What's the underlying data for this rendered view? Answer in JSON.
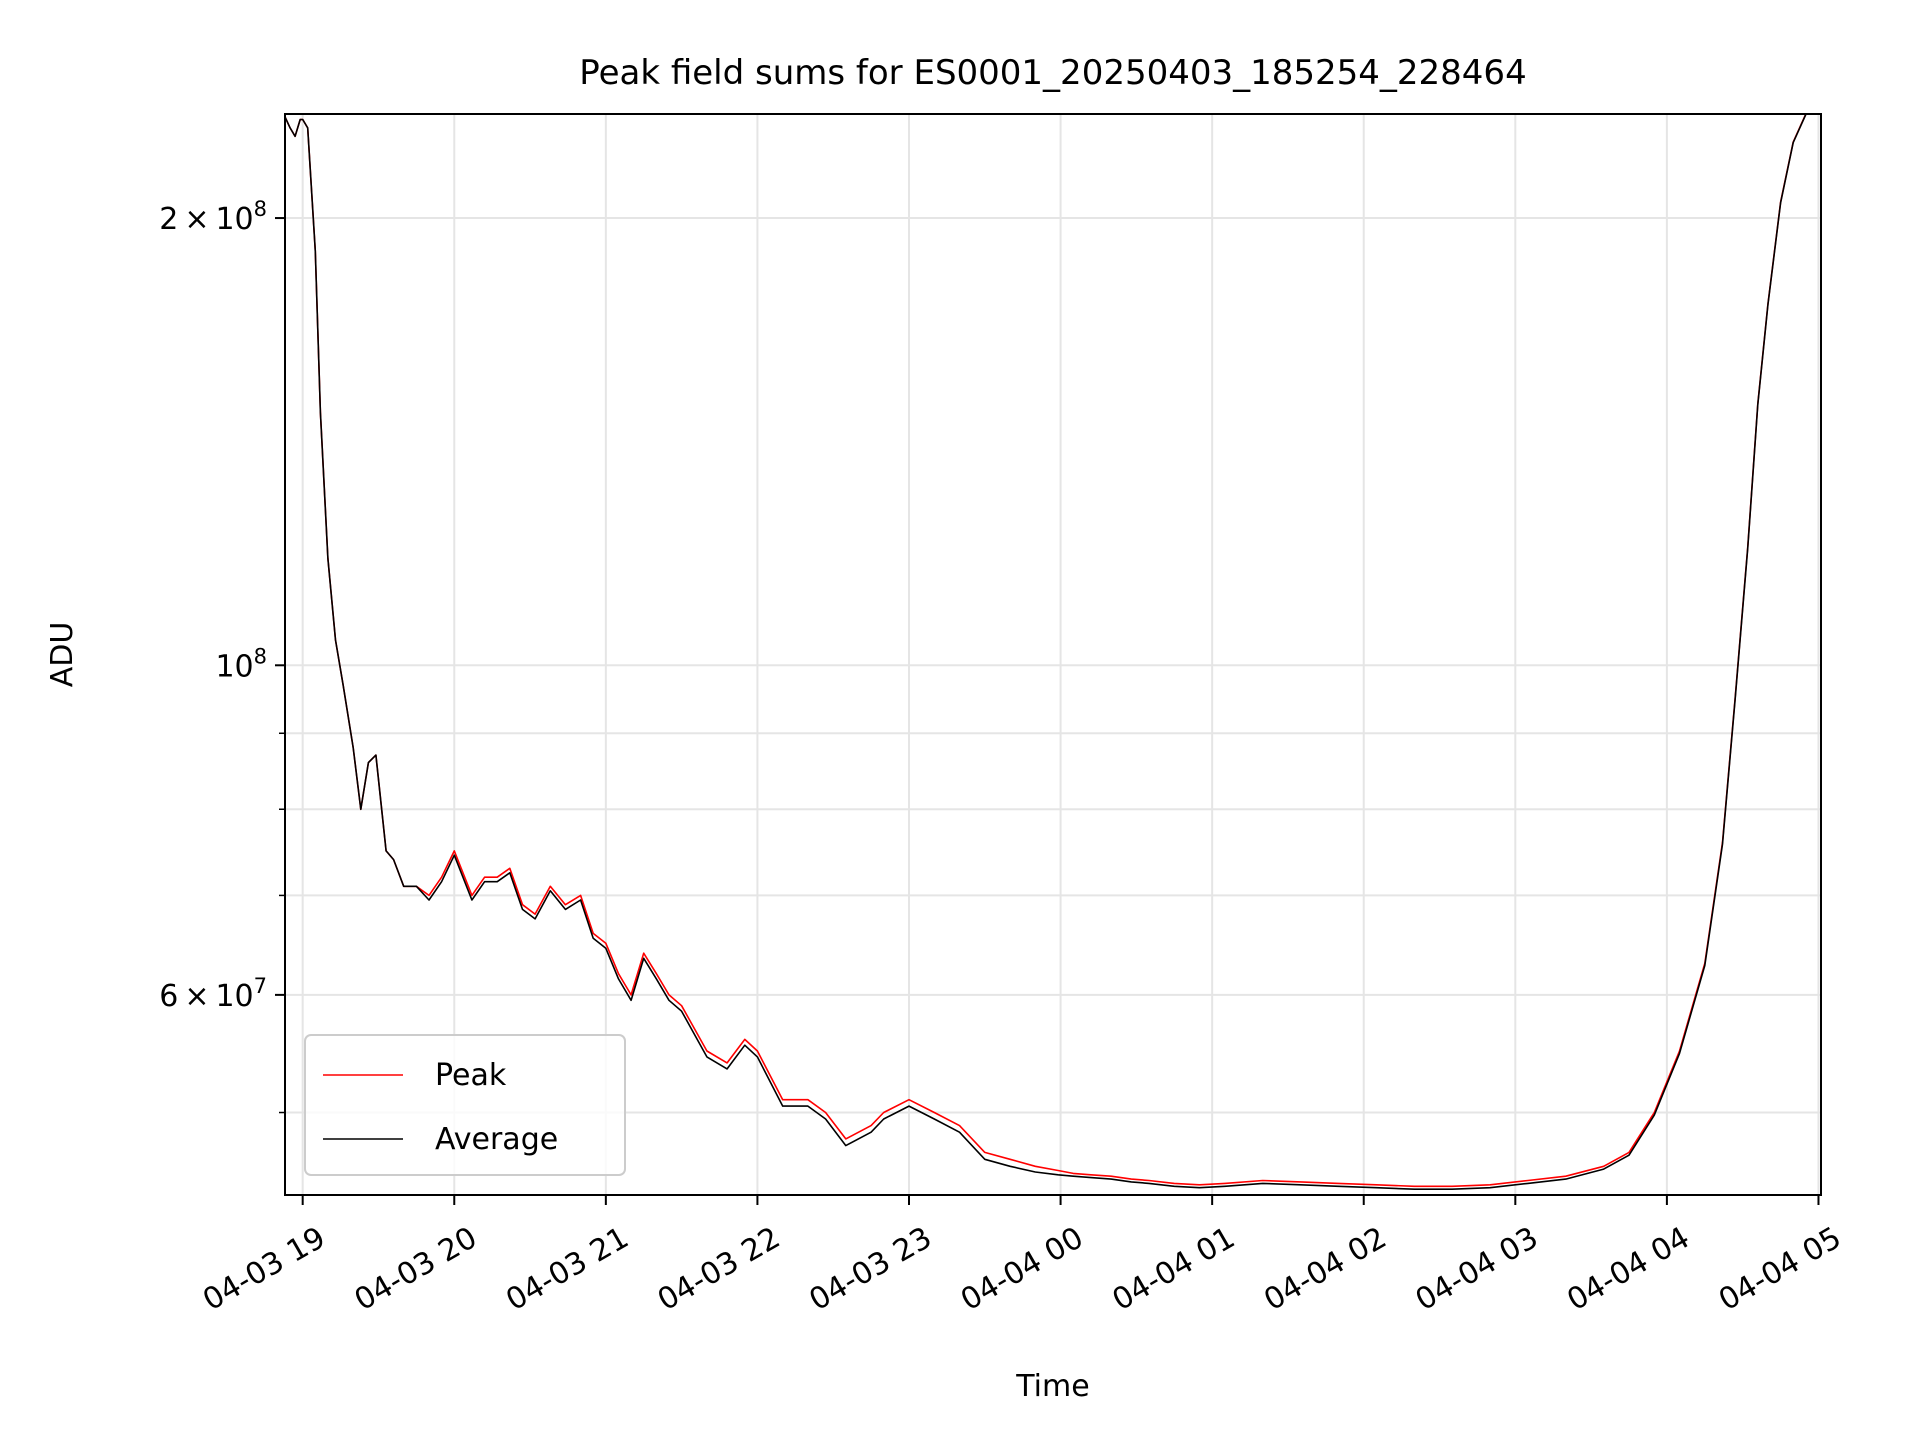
{
  "chart_data": {
    "type": "line",
    "title": "Peak field sums for ES0001_20250403_185254_228464",
    "xlabel": "Time",
    "ylabel": "ADU",
    "yscale": "log",
    "xlim": [
      "04-03 18:53",
      "04-04 05:01"
    ],
    "ylim": [
      44000000.0,
      235000000.0
    ],
    "grid": true,
    "legend_position": "lower-left",
    "x_ticks": [
      "04-03 19",
      "04-03 20",
      "04-03 21",
      "04-03 22",
      "04-03 23",
      "04-04 00",
      "04-04 01",
      "04-04 02",
      "04-04 03",
      "04-04 04",
      "04-04 05"
    ],
    "y_tick_labels": [
      {
        "value": 200000000,
        "mantissa": "2",
        "exponent": "8"
      },
      {
        "value": 100000000,
        "mantissa": "",
        "exponent": "8"
      },
      {
        "value": 60000000,
        "mantissa": "6",
        "exponent": "7"
      }
    ],
    "y_minor_ticks": [
      50000000,
      70000000,
      80000000,
      90000000
    ],
    "series": [
      {
        "name": "Peak",
        "color": "#ff0000",
        "x": [
          "04-03 18:53",
          "04-03 18:55",
          "04-03 18:57",
          "04-03 18:59",
          "04-03 19:00",
          "04-03 19:02",
          "04-03 19:05",
          "04-03 19:07",
          "04-03 19:10",
          "04-03 19:13",
          "04-03 19:16",
          "04-03 19:20",
          "04-03 19:23",
          "04-03 19:26",
          "04-03 19:29",
          "04-03 19:33",
          "04-03 19:36",
          "04-03 19:40",
          "04-03 19:45",
          "04-03 19:50",
          "04-03 19:55",
          "04-03 20:00",
          "04-03 20:07",
          "04-03 20:12",
          "04-03 20:17",
          "04-03 20:22",
          "04-03 20:27",
          "04-03 20:32",
          "04-03 20:38",
          "04-03 20:44",
          "04-03 20:50",
          "04-03 20:55",
          "04-03 21:00",
          "04-03 21:05",
          "04-03 21:10",
          "04-03 21:15",
          "04-03 21:20",
          "04-03 21:25",
          "04-03 21:30",
          "04-03 21:40",
          "04-03 21:48",
          "04-03 21:55",
          "04-03 22:00",
          "04-03 22:10",
          "04-03 22:20",
          "04-03 22:27",
          "04-03 22:35",
          "04-03 22:45",
          "04-03 22:50",
          "04-03 23:00",
          "04-03 23:10",
          "04-03 23:20",
          "04-03 23:30",
          "04-03 23:40",
          "04-03 23:50",
          "04-03 23:59",
          "04-04 00:05",
          "04-04 00:12",
          "04-04 00:20",
          "04-04 00:28",
          "04-04 00:35",
          "04-04 00:45",
          "04-04 00:55",
          "04-04 01:05",
          "04-04 01:20",
          "04-04 01:35",
          "04-04 01:50",
          "04-04 02:05",
          "04-04 02:20",
          "04-04 02:35",
          "04-04 02:50",
          "04-04 03:05",
          "04-04 03:20",
          "04-04 03:35",
          "04-04 03:45",
          "04-04 03:55",
          "04-04 04:05",
          "04-04 04:15",
          "04-04 04:22",
          "04-04 04:27",
          "04-04 04:32",
          "04-04 04:36",
          "04-04 04:40",
          "04-04 04:45",
          "04-04 04:50",
          "04-04 04:55",
          "04-04 05:00",
          "04-04 05:01"
        ],
        "values": [
          234000000,
          230000000,
          227000000,
          233000000,
          233000000,
          230000000,
          190000000,
          148000000,
          118000000,
          104000000,
          97000000,
          88000000,
          80000000,
          86000000,
          87000000,
          75000000,
          74000000,
          71000000,
          71000000,
          70000000,
          72000000,
          75000000,
          70000000,
          72000000,
          72000000,
          73000000,
          69000000,
          68000000,
          71000000,
          69000000,
          70000000,
          66000000,
          65000000,
          62000000,
          60000000,
          64000000,
          62000000,
          60000000,
          59000000,
          55000000,
          54000000,
          56000000,
          55000000,
          51000000,
          51000000,
          50000000,
          48000000,
          49000000,
          50000000,
          51000000,
          50000000,
          49000000,
          47000000,
          46500000,
          46000000,
          45700000,
          45500000,
          45400000,
          45300000,
          45100000,
          45000000,
          44800000,
          44700000,
          44800000,
          45000000,
          44900000,
          44800000,
          44700000,
          44600000,
          44600000,
          44700000,
          45000000,
          45300000,
          46000000,
          47000000,
          50000000,
          55000000,
          63000000,
          76000000,
          95000000,
          120000000,
          150000000,
          175000000,
          205000000,
          225000000,
          235000000,
          238000000,
          240000000
        ]
      },
      {
        "name": "Average",
        "color": "#000000",
        "x": [
          "04-03 18:53",
          "04-03 18:55",
          "04-03 18:57",
          "04-03 18:59",
          "04-03 19:00",
          "04-03 19:02",
          "04-03 19:05",
          "04-03 19:07",
          "04-03 19:10",
          "04-03 19:13",
          "04-03 19:16",
          "04-03 19:20",
          "04-03 19:23",
          "04-03 19:26",
          "04-03 19:29",
          "04-03 19:33",
          "04-03 19:36",
          "04-03 19:40",
          "04-03 19:45",
          "04-03 19:50",
          "04-03 19:55",
          "04-03 20:00",
          "04-03 20:07",
          "04-03 20:12",
          "04-03 20:17",
          "04-03 20:22",
          "04-03 20:27",
          "04-03 20:32",
          "04-03 20:38",
          "04-03 20:44",
          "04-03 20:50",
          "04-03 20:55",
          "04-03 21:00",
          "04-03 21:05",
          "04-03 21:10",
          "04-03 21:15",
          "04-03 21:20",
          "04-03 21:25",
          "04-03 21:30",
          "04-03 21:40",
          "04-03 21:48",
          "04-03 21:55",
          "04-03 22:00",
          "04-03 22:10",
          "04-03 22:20",
          "04-03 22:27",
          "04-03 22:35",
          "04-03 22:45",
          "04-03 22:50",
          "04-03 23:00",
          "04-03 23:10",
          "04-03 23:20",
          "04-03 23:30",
          "04-03 23:40",
          "04-03 23:50",
          "04-03 23:59",
          "04-04 00:05",
          "04-04 00:12",
          "04-04 00:20",
          "04-04 00:28",
          "04-04 00:35",
          "04-04 00:45",
          "04-04 00:55",
          "04-04 01:05",
          "04-04 01:20",
          "04-04 01:35",
          "04-04 01:50",
          "04-04 02:05",
          "04-04 02:20",
          "04-04 02:35",
          "04-04 02:50",
          "04-04 03:05",
          "04-04 03:20",
          "04-04 03:35",
          "04-04 03:45",
          "04-04 03:55",
          "04-04 04:05",
          "04-04 04:15",
          "04-04 04:22",
          "04-04 04:27",
          "04-04 04:32",
          "04-04 04:36",
          "04-04 04:40",
          "04-04 04:45",
          "04-04 04:50",
          "04-04 04:55",
          "04-04 05:00",
          "04-04 05:01"
        ],
        "values": [
          234000000,
          230000000,
          227000000,
          233000000,
          233000000,
          230000000,
          190000000,
          148000000,
          118000000,
          104000000,
          97000000,
          88000000,
          80000000,
          86000000,
          87000000,
          75000000,
          74000000,
          71000000,
          71000000,
          69500000,
          71500000,
          74500000,
          69500000,
          71500000,
          71500000,
          72500000,
          68500000,
          67500000,
          70500000,
          68500000,
          69500000,
          65500000,
          64500000,
          61500000,
          59500000,
          63500000,
          61500000,
          59500000,
          58500000,
          54500000,
          53500000,
          55500000,
          54500000,
          50500000,
          50500000,
          49500000,
          47500000,
          48500000,
          49500000,
          50500000,
          49500000,
          48500000,
          46500000,
          46000000,
          45600000,
          45400000,
          45300000,
          45200000,
          45100000,
          44900000,
          44800000,
          44600000,
          44500000,
          44600000,
          44800000,
          44700000,
          44600000,
          44500000,
          44400000,
          44400000,
          44500000,
          44800000,
          45100000,
          45800000,
          46800000,
          49800000,
          54800000,
          62800000,
          75800000,
          94800000,
          119800000,
          149800000,
          174800000,
          204800000,
          224800000,
          234800000,
          237800000,
          239800000
        ]
      }
    ]
  }
}
